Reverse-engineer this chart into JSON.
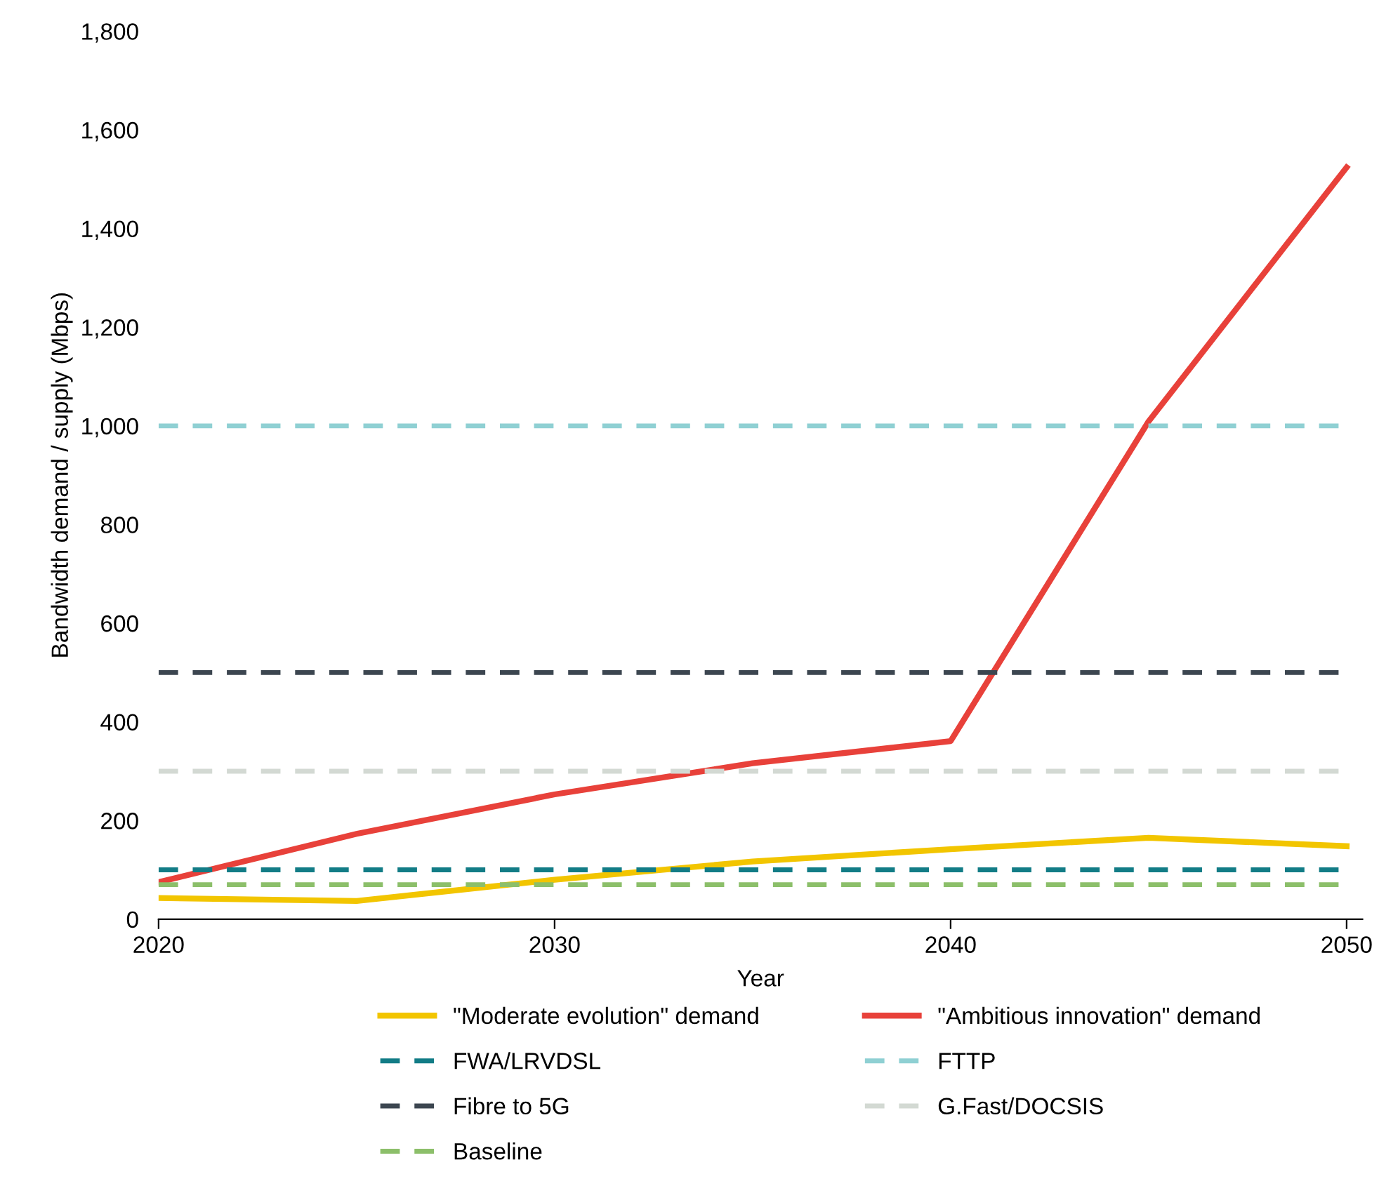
{
  "chart_data": {
    "type": "line",
    "xlabel": "Year",
    "ylabel": "Bandwidth demand / supply (Mbps)",
    "x": [
      2020,
      2025,
      2030,
      2035,
      2040,
      2045,
      2050
    ],
    "series": [
      {
        "name": "\"Moderate evolution\" demand",
        "color": "#f2c500",
        "line_style": "solid",
        "values": [
          43,
          37,
          80,
          117,
          142,
          165,
          148
        ]
      },
      {
        "name": "\"Ambitious innovation\" demand",
        "color": "#e8413a",
        "line_style": "solid",
        "values": [
          75,
          173,
          253,
          316,
          361,
          1009,
          1524
        ]
      },
      {
        "name": "FWA/LRVDSL",
        "color": "#127c86",
        "line_style": "dashed",
        "values": [
          100,
          100,
          100,
          100,
          100,
          100,
          100
        ]
      },
      {
        "name": "FTTP",
        "color": "#8fd0d3",
        "line_style": "dashed",
        "values": [
          1000,
          1000,
          1000,
          1000,
          1000,
          1000,
          1000
        ]
      },
      {
        "name": "Fibre to 5G",
        "color": "#3c4650",
        "line_style": "dashed",
        "values": [
          500,
          500,
          500,
          500,
          500,
          500,
          500
        ]
      },
      {
        "name": "G.Fast/DOCSIS",
        "color": "#d3d9d3",
        "line_style": "dashed",
        "values": [
          300,
          300,
          300,
          300,
          300,
          300,
          300
        ]
      },
      {
        "name": "Baseline",
        "color": "#8cbf6a",
        "line_style": "dashed",
        "values": [
          70,
          70,
          70,
          70,
          70,
          70,
          70
        ]
      }
    ],
    "xlim": [
      2020,
      2050.4
    ],
    "xticks": [
      2020,
      2030,
      2040,
      2050
    ],
    "ylim": [
      0,
      1800
    ],
    "yticks": [
      0,
      {
        "value": 200,
        "label": "200"
      },
      {
        "value": 400,
        "label": "400"
      },
      {
        "value": 600,
        "label": "600"
      },
      {
        "value": 800,
        "label": "800"
      },
      {
        "value": 1000,
        "label": "1,000"
      },
      {
        "value": 1200,
        "label": "1,200"
      },
      {
        "value": 1400,
        "label": "1,400"
      },
      {
        "value": 1600,
        "label": "1,600"
      },
      {
        "value": 1800,
        "label": "1,800"
      }
    ],
    "grid": false,
    "legend": "bottom",
    "marker": "none"
  }
}
